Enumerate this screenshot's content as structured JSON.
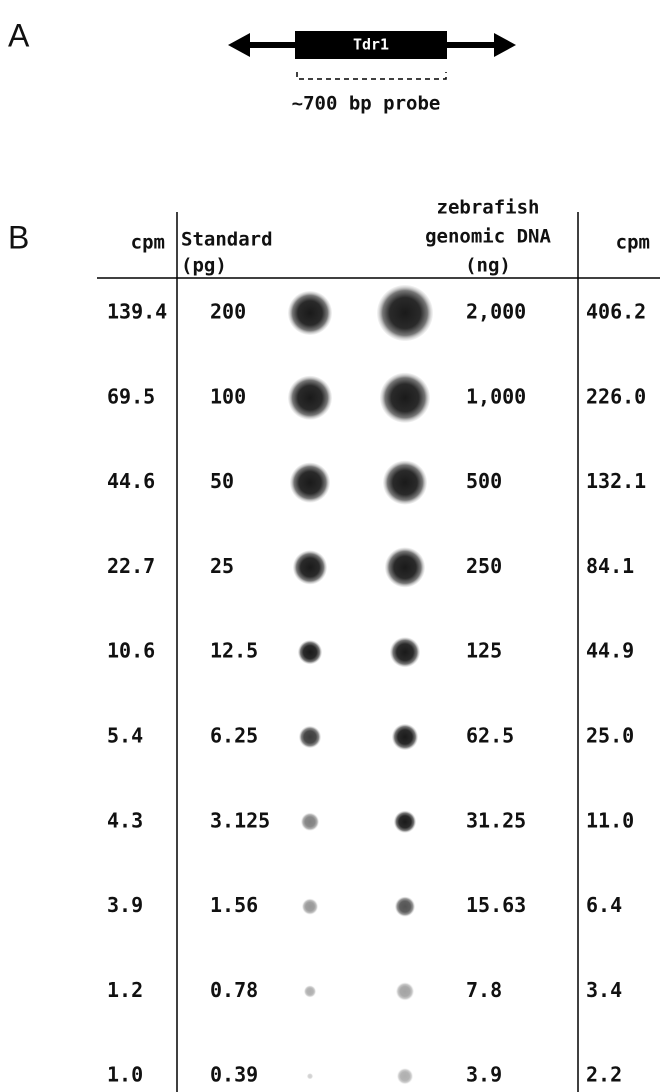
{
  "panel_a": {
    "label": "A",
    "gene": "Tdr1",
    "probe": "~700 bp probe"
  },
  "panel_b": {
    "label": "B",
    "headers": [
      [
        "cpm"
      ],
      [
        "Standard",
        "(pg)"
      ],
      [
        "zebrafish",
        "genomic DNA",
        "(ng)"
      ],
      [
        "cpm"
      ]
    ],
    "rows": [
      [
        "139.4",
        "200",
        "2,000",
        "406.2"
      ],
      [
        "69.5",
        "100",
        "1,000",
        "226.0"
      ],
      [
        "44.6",
        "50",
        "500",
        "132.1"
      ],
      [
        "22.7",
        "25",
        "250",
        "84.1"
      ],
      [
        "10.6",
        "12.5",
        "125",
        "44.9"
      ],
      [
        "5.4",
        "6.25",
        "62.5",
        "25.0"
      ],
      [
        "4.3",
        "3.125",
        "31.25",
        "11.0"
      ],
      [
        "3.9",
        "1.56",
        "15.63",
        "6.4"
      ],
      [
        "1.2",
        "0.78",
        "7.8",
        "3.4"
      ],
      [
        "1.0",
        "0.39",
        "3.9",
        "2.2"
      ]
    ]
  }
}
